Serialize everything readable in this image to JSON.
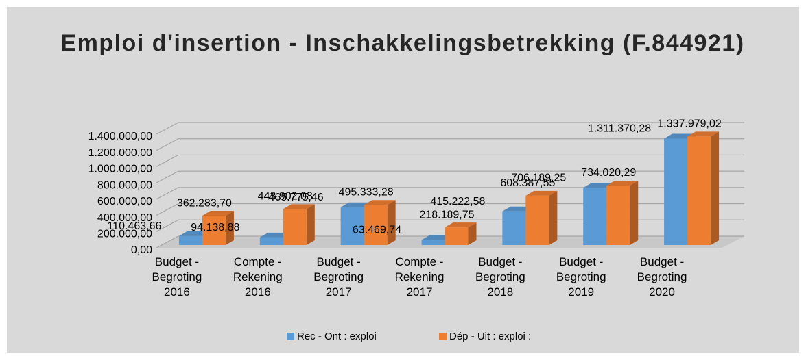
{
  "chart_data": {
    "type": "bar3d",
    "title": "Emploi d'insertion - Inschakkelingsbetrekking (F.844921)",
    "categories": [
      "Budget - Begroting 2016",
      "Compte - Rekening 2016",
      "Budget - Begroting 2017",
      "Compte - Rekening 2017",
      "Budget - Begroting 2018",
      "Budget - Begroting 2019",
      "Budget - Begroting 2020"
    ],
    "series": [
      {
        "name": "Rec - Ont : exploi",
        "color": "#5b9bd5",
        "values": [
          110463.66,
          94138.88,
          465775.46,
          63469.74,
          415222.58,
          706189.25,
          1311370.28
        ],
        "value_labels": [
          "110.463,66",
          "94.138,88",
          "465.775,46",
          "63.469,74",
          "415.222,58",
          "706.189,25",
          "1.311.370,28"
        ]
      },
      {
        "name": "Dép - Uit : exploi :",
        "color": "#ed7d31",
        "values": [
          362283.7,
          443902.08,
          495333.28,
          218189.75,
          608387.55,
          734020.29,
          1337979.02
        ],
        "value_labels": [
          "362.283,70",
          "443.902,08",
          "495.333,28",
          "218.189,75",
          "608.387,55",
          "734.020,29",
          "1.337.979,02"
        ]
      }
    ],
    "ylim": [
      0,
      1400000
    ],
    "yticks": [
      {
        "value": 0,
        "label": "0,00"
      },
      {
        "value": 200000,
        "label": "200.000,00"
      },
      {
        "value": 400000,
        "label": "400.000,00"
      },
      {
        "value": 600000,
        "label": "600.000,00"
      },
      {
        "value": 800000,
        "label": "800.000,00"
      },
      {
        "value": 1000000,
        "label": "1.000.000,00"
      },
      {
        "value": 1200000,
        "label": "1.200.000,00"
      },
      {
        "value": 1400000,
        "label": "1.400.000,00"
      }
    ],
    "grid": true,
    "legend": "bottom"
  }
}
